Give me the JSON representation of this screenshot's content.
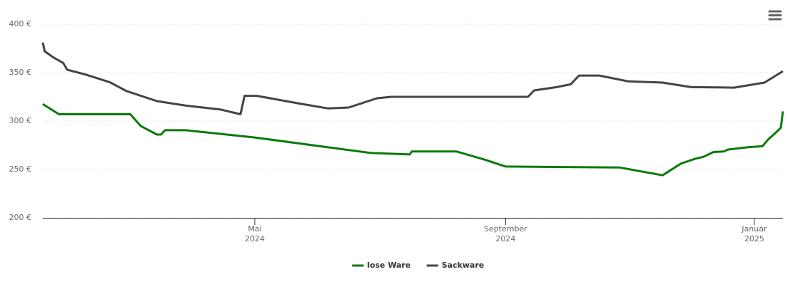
{
  "chart_data": {
    "type": "line",
    "xlim": [
      "2024-01-18",
      "2025-01-15"
    ],
    "xticks": [
      {
        "value": "2024-05-01",
        "label": [
          "Mai",
          "2024"
        ]
      },
      {
        "value": "2024-09-01",
        "label": [
          "September",
          "2024"
        ]
      },
      {
        "value": "2025-01-01",
        "label": [
          "Januar",
          "2025"
        ]
      }
    ],
    "ylim": [
      200,
      400
    ],
    "yticks": [
      {
        "value": 200,
        "label": "200 €"
      },
      {
        "value": 250,
        "label": "250 €"
      },
      {
        "value": 300,
        "label": "300 €"
      },
      {
        "value": 350,
        "label": "350 €"
      },
      {
        "value": 400,
        "label": "400 €"
      }
    ],
    "grid": true,
    "legend": "bottom",
    "series": [
      {
        "name": "lose Ware",
        "color": "#0a7a0a",
        "x": [
          "2024-01-18",
          "2024-01-26",
          "2024-03-01",
          "2024-03-06",
          "2024-03-14",
          "2024-03-16",
          "2024-03-18",
          "2024-03-28",
          "2024-05-01",
          "2024-06-02",
          "2024-06-27",
          "2024-07-16",
          "2024-07-17",
          "2024-08-08",
          "2024-08-22",
          "2024-09-01",
          "2024-10-27",
          "2024-11-17",
          "2024-11-26",
          "2024-12-03",
          "2024-12-07",
          "2024-12-12",
          "2024-12-17",
          "2024-12-19",
          "2024-12-29",
          "2025-01-05",
          "2025-01-08",
          "2025-01-11",
          "2025-01-14",
          "2025-01-15"
        ],
        "values": [
          317.6,
          307,
          307,
          295,
          286,
          286,
          290.5,
          290.5,
          283,
          274,
          267,
          265.5,
          268.5,
          268.5,
          260,
          253,
          252,
          244,
          256,
          261,
          263,
          268,
          268.5,
          270.5,
          273,
          274,
          281.5,
          287,
          293,
          310
        ]
      },
      {
        "name": "Sackware",
        "color": "#434348",
        "x": [
          "2024-01-18",
          "2024-01-19",
          "2024-01-23",
          "2024-01-28",
          "2024-01-30",
          "2024-02-08",
          "2024-02-20",
          "2024-02-28",
          "2024-03-14",
          "2024-03-28",
          "2024-04-14",
          "2024-04-24",
          "2024-04-26",
          "2024-05-02",
          "2024-05-23",
          "2024-06-06",
          "2024-06-16",
          "2024-06-30",
          "2024-07-07",
          "2024-09-12",
          "2024-09-15",
          "2024-09-26",
          "2024-10-03",
          "2024-10-07",
          "2024-10-17",
          "2024-10-31",
          "2024-11-17",
          "2024-12-01",
          "2024-12-22",
          "2025-01-06",
          "2025-01-15"
        ],
        "values": [
          381,
          372,
          366,
          360,
          353,
          348,
          340,
          331,
          320.6,
          316,
          312,
          307,
          326,
          326,
          318,
          313,
          314,
          323.5,
          325,
          325,
          331.6,
          335,
          338,
          347,
          347,
          341,
          339.7,
          335,
          334.5,
          339.7,
          351.5
        ]
      }
    ]
  }
}
